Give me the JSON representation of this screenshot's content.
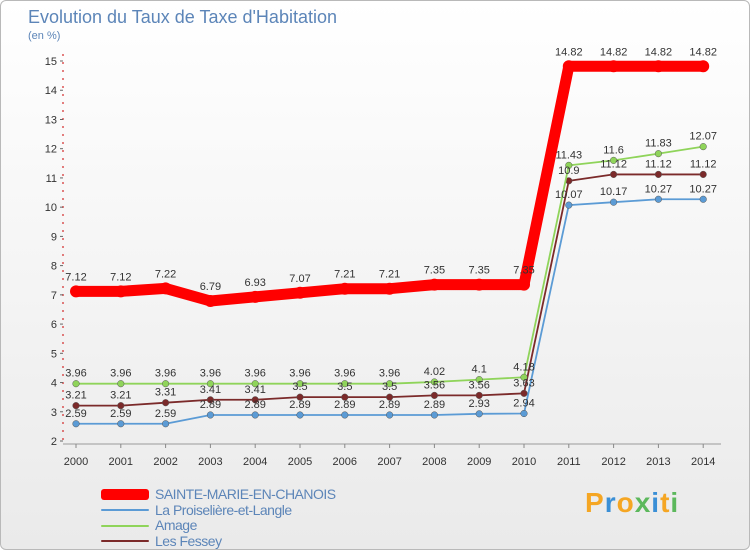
{
  "title": "Evolution du Taux de Taxe d'Habitation",
  "unit": "(en %)",
  "logo": {
    "text": "Proxiti",
    "colors": [
      "#f5a623",
      "#3a8fd6",
      "#f5a623",
      "#5cb85c",
      "#3a8fd6",
      "#f5a623",
      "#5cb85c"
    ]
  },
  "chart_data": {
    "type": "line",
    "x": [
      "2000",
      "2001",
      "2002",
      "2003",
      "2004",
      "2005",
      "2006",
      "2007",
      "2008",
      "2009",
      "2010",
      "2011",
      "2012",
      "2013",
      "2014"
    ],
    "ylim": [
      2,
      15
    ],
    "yticks": [
      "2",
      "3",
      "4",
      "5",
      "6",
      "7",
      "8",
      "9",
      "10",
      "11",
      "12",
      "13",
      "14",
      "15"
    ],
    "grid": false,
    "legend_position": "bottom-left",
    "series": [
      {
        "name": "SAINTE-MARIE-EN-CHANOIS",
        "color": "#ff0000",
        "emphasis": true,
        "values": [
          7.12,
          7.12,
          7.22,
          6.79,
          6.93,
          7.07,
          7.21,
          7.21,
          7.35,
          7.35,
          7.35,
          14.82,
          14.82,
          14.82,
          14.82
        ],
        "labels": [
          "7.12",
          "7.12",
          "7.22",
          "6.79",
          "6.93",
          "7.07",
          "7.21",
          "7.21",
          "7.35",
          "7.35",
          "7.35",
          "14.82",
          "14.82",
          "14.82",
          "14.82"
        ]
      },
      {
        "name": "La Proiselière-et-Langle",
        "color": "#5b9bd5",
        "values": [
          2.59,
          2.59,
          2.59,
          2.89,
          2.89,
          2.89,
          2.89,
          2.89,
          2.89,
          2.93,
          2.94,
          10.07,
          10.17,
          10.27,
          10.27
        ],
        "labels": [
          "2.59",
          "2.59",
          "2.59",
          "2.89",
          "2.89",
          "2.89",
          "2.89",
          "2.89",
          "2.89",
          "2.93",
          "2.94",
          "10.07",
          "10.17",
          "10.27",
          "10.27"
        ]
      },
      {
        "name": "Amage",
        "color": "#8fd45a",
        "values": [
          3.96,
          3.96,
          3.96,
          3.96,
          3.96,
          3.96,
          3.96,
          3.96,
          4.02,
          4.1,
          4.18,
          11.43,
          11.6,
          11.83,
          12.07
        ],
        "labels": [
          "3.96",
          "3.96",
          "3.96",
          "3.96",
          "3.96",
          "3.96",
          "3.96",
          "3.96",
          "4.02",
          "4.1",
          "4.18",
          "11.43",
          "11.6",
          "11.83",
          "12.07"
        ]
      },
      {
        "name": "Les Fessey",
        "color": "#7b2a2a",
        "values": [
          3.21,
          3.21,
          3.31,
          3.41,
          3.41,
          3.5,
          3.5,
          3.5,
          3.56,
          3.56,
          3.63,
          10.9,
          11.12,
          11.12,
          11.12
        ],
        "labels": [
          "3.21",
          "3.21",
          "3.31",
          "3.41",
          "3.41",
          "3.5",
          "3.5",
          "3.5",
          "3.56",
          "3.56",
          "3.63",
          "10.9",
          "11.12",
          "11.12",
          "11.12"
        ]
      }
    ]
  }
}
